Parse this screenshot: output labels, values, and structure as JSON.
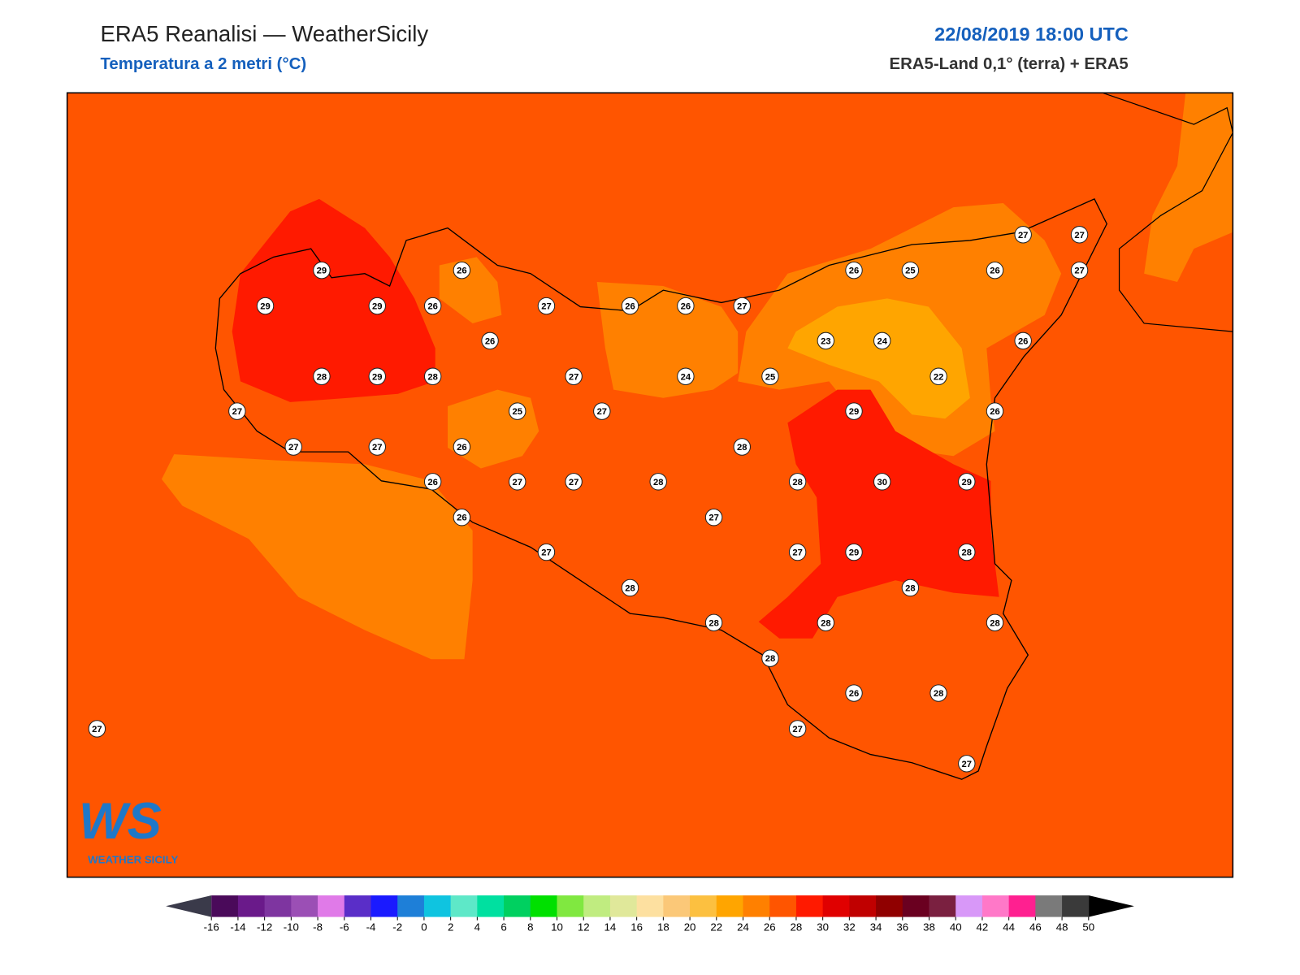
{
  "header": {
    "title": "ERA5 Reanalisi — WeatherSicily",
    "subtitle": "Temperatura a 2 metri (°C)",
    "datetime": "22/08/2019 18:00 UTC",
    "source": "ERA5-Land 0,1° (terra) + ERA5"
  },
  "logo": {
    "text": "WS",
    "name": "WEATHER SICILY"
  },
  "stations": [
    29,
    26,
    29,
    29,
    26,
    27,
    26,
    26,
    27,
    26,
    28,
    29,
    28,
    27,
    24,
    25,
    27,
    25,
    27,
    27,
    27,
    26,
    28,
    26,
    27,
    27,
    28,
    28,
    30,
    29,
    26,
    27,
    27,
    27,
    29,
    28,
    28,
    28,
    28,
    28,
    28,
    28,
    26,
    28,
    27,
    27,
    27,
    27,
    27,
    26,
    25,
    26,
    27,
    23,
    24,
    26,
    22,
    29,
    26
  ],
  "colorbar": {
    "ticks": [
      -16,
      -14,
      -12,
      -10,
      -8,
      -6,
      -4,
      -2,
      0,
      2,
      4,
      6,
      8,
      10,
      12,
      14,
      16,
      18,
      20,
      22,
      24,
      26,
      28,
      30,
      32,
      34,
      36,
      38,
      40,
      42,
      44,
      46,
      48,
      50
    ],
    "colors": [
      "#4a0a5a",
      "#6a1a8a",
      "#7e35a0",
      "#9b4fb5",
      "#e07ae8",
      "#5a2ec8",
      "#1a1aff",
      "#1e7fd8",
      "#0fc4e0",
      "#5ee8c8",
      "#00e0a0",
      "#00d060",
      "#00e000",
      "#80e840",
      "#c0ec80",
      "#e0e89a",
      "#fde0a0",
      "#fbc878",
      "#fcc040",
      "#ffa500",
      "#ff8000",
      "#ff5500",
      "#ff1a00",
      "#e00000",
      "#c00000",
      "#900000",
      "#6a0020",
      "#7a2040",
      "#d898f8",
      "#ff78c8",
      "#ff2090",
      "#7a7a7a",
      "#3a3a3a"
    ],
    "under": "#3a3a4a",
    "over": "#000000"
  }
}
